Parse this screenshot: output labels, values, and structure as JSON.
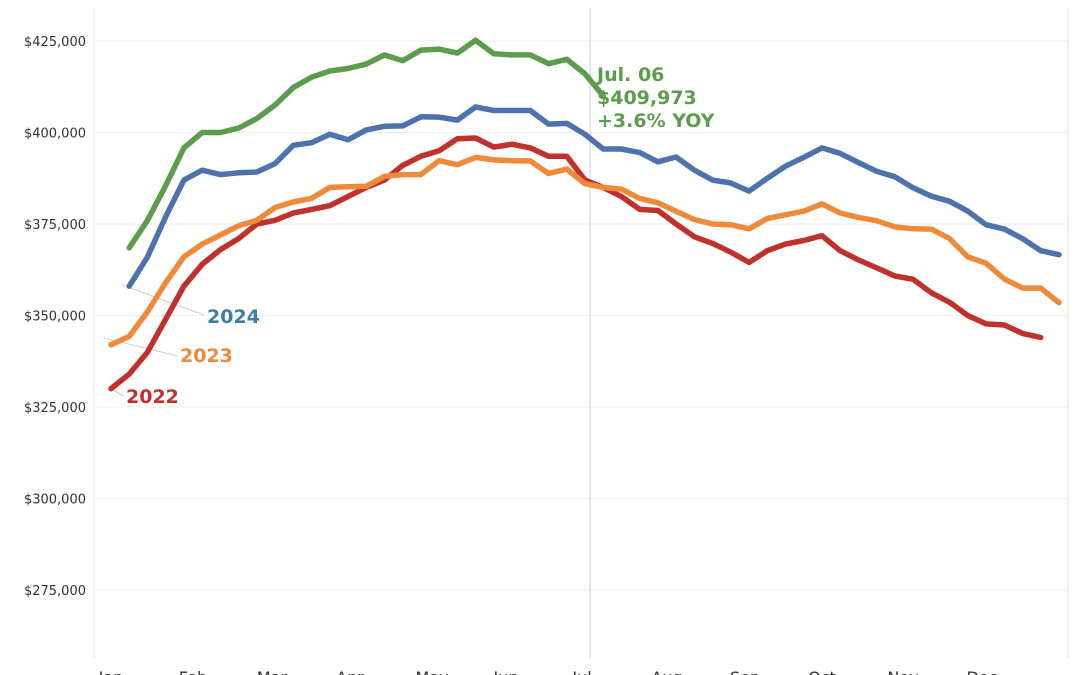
{
  "chart_data": {
    "type": "line",
    "title": "",
    "xlabel": "",
    "ylabel": "",
    "ylim": [
      260000,
      432000
    ],
    "yticks": [
      275000,
      300000,
      325000,
      350000,
      375000,
      400000,
      425000
    ],
    "ytick_labels": [
      "$275,000",
      "$300,000",
      "$325,000",
      "$350,000",
      "$375,000",
      "$400,000",
      "$425,000"
    ],
    "months": [
      "Jan",
      "Feb",
      "Mar",
      "Apr",
      "May",
      "Jun",
      "Jul",
      "Aug",
      "Sep",
      "Oct",
      "Nov",
      "Dec"
    ],
    "grid": true,
    "reference_line_date": "Jul. 06",
    "series": [
      {
        "name": "2022",
        "color": "#c0312b",
        "week_start": 0,
        "values": [
          330000,
          334000,
          340000,
          349000,
          358000,
          364000,
          368000,
          371000,
          375000,
          376000,
          378000,
          379000,
          380000,
          382500,
          385000,
          387000,
          391000,
          393500,
          395000,
          398300,
          398500,
          396000,
          396800,
          395800,
          393500,
          393500,
          387000,
          385000,
          382500,
          379000,
          378700,
          375000,
          371500,
          369700,
          367300,
          364500,
          367700,
          369500,
          370500,
          371800,
          367700,
          365200,
          363000,
          360800,
          359900,
          356200,
          353600,
          350000,
          347700,
          347400,
          345100,
          344000
        ]
      },
      {
        "name": "2023",
        "color": "#ef8a3b",
        "week_start": 0,
        "values": [
          342000,
          344300,
          351000,
          359000,
          366000,
          369500,
          372000,
          374500,
          376000,
          379500,
          381000,
          382000,
          385000,
          385200,
          385300,
          388000,
          388500,
          388500,
          392300,
          391200,
          393200,
          392500,
          392300,
          392200,
          388800,
          390000,
          386000,
          385000,
          384500,
          382000,
          380800,
          378500,
          376200,
          375000,
          374800,
          373700,
          376500,
          377500,
          378500,
          380500,
          378000,
          376800,
          375900,
          374200,
          373700,
          373600,
          371000,
          366000,
          364300,
          360000,
          357500,
          357500,
          353500
        ]
      },
      {
        "name": "2024",
        "color": "#4e72ad",
        "week_start": 1,
        "values": [
          358000,
          366000,
          377000,
          387000,
          389700,
          388500,
          389000,
          389200,
          391500,
          396500,
          397200,
          399500,
          398000,
          400700,
          401700,
          401800,
          404300,
          404200,
          403400,
          407000,
          406000,
          406000,
          406000,
          402300,
          402500,
          399500,
          395500,
          395500,
          394500,
          392000,
          393300,
          389700,
          387000,
          386200,
          384000,
          387500,
          390800,
          393200,
          395800,
          394300,
          391800,
          389400,
          387900,
          384900,
          382600,
          381200,
          378500,
          374800,
          373600,
          371000,
          367700,
          366600
        ]
      },
      {
        "name": "",
        "color": "#5d9c4c",
        "week_start": 1,
        "values": [
          368500,
          376000,
          385500,
          395800,
          400000,
          400000,
          401200,
          403800,
          407500,
          412300,
          415100,
          416800,
          417500,
          418700,
          421200,
          419600,
          422500,
          422800,
          421700,
          425200,
          421500,
          421200,
          421200,
          418800,
          420000,
          416000,
          409973
        ]
      }
    ],
    "series_labels": [
      {
        "text": "2024",
        "color": "#3d7fa8"
      },
      {
        "text": "2023",
        "color": "#ef8a3b"
      },
      {
        "text": "2022",
        "color": "#c0312b"
      }
    ],
    "annotation": {
      "date": "Jul. 06",
      "value": "$409,973",
      "change": "+3.6% YOY",
      "color": "#5d9c4c"
    }
  }
}
